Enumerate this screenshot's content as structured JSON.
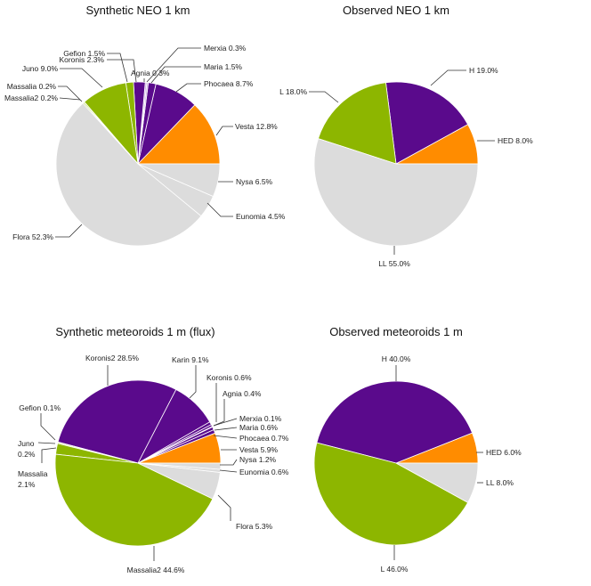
{
  "colors": {
    "purple": "#5a0a8c",
    "orange": "#ff8c00",
    "green": "#8db600",
    "gray": "#dcdcdc",
    "lavender": "#c8a6e2"
  },
  "chart_data": [
    {
      "type": "pie",
      "title": "Synthetic NEO 1 km",
      "start": "east, counter-clockwise",
      "slices": [
        {
          "name": "Vesta",
          "value": 12.8,
          "label": "Vesta 12.8%",
          "color": "#ff8c00"
        },
        {
          "name": "Phocaea",
          "value": 8.7,
          "label": "Phocaea 8.7%",
          "color": "#5a0a8c"
        },
        {
          "name": "Maria",
          "value": 1.5,
          "label": "Maria 1.5%",
          "color": "#5a0a8c"
        },
        {
          "name": "Merxia",
          "value": 0.3,
          "label": "Merxia 0.3%",
          "color": "#c8a6e2"
        },
        {
          "name": "Agnia",
          "value": 0.3,
          "label": "Agnia 0.3%",
          "color": "#c8a6e2"
        },
        {
          "name": "Koronis",
          "value": 2.3,
          "label": "Koronis 2.3%",
          "color": "#5a0a8c"
        },
        {
          "name": "Gefion",
          "value": 1.5,
          "label": "Gefion 1.5%",
          "color": "#8db600"
        },
        {
          "name": "Juno",
          "value": 9.0,
          "label": "Juno 9.0%",
          "color": "#8db600"
        },
        {
          "name": "Massalia",
          "value": 0.2,
          "label": "Massalia 0.2%",
          "color": "#8db600"
        },
        {
          "name": "Massalia2",
          "value": 0.2,
          "label": "Massalia2 0.2%",
          "color": "#8db600"
        },
        {
          "name": "Flora",
          "value": 52.3,
          "label": "Flora 52.3%",
          "color": "#dcdcdc"
        },
        {
          "name": "Eunomia",
          "value": 4.5,
          "label": "Eunomia 4.5%",
          "color": "#dcdcdc"
        },
        {
          "name": "Nysa",
          "value": 6.5,
          "label": "Nysa 6.5%",
          "color": "#dcdcdc"
        }
      ]
    },
    {
      "type": "pie",
      "title": "Observed NEO 1 km",
      "start": "east, counter-clockwise",
      "slices": [
        {
          "name": "HED",
          "value": 8.0,
          "label": "HED 8.0%",
          "color": "#ff8c00"
        },
        {
          "name": "H",
          "value": 19.0,
          "label": "H 19.0%",
          "color": "#5a0a8c"
        },
        {
          "name": "L",
          "value": 18.0,
          "label": "L 18.0%",
          "color": "#8db600"
        },
        {
          "name": "LL",
          "value": 55.0,
          "label": "LL 55.0%",
          "color": "#dcdcdc"
        }
      ]
    },
    {
      "type": "pie",
      "title": "Synthetic meteoroids 1 m (flux)",
      "start": "east, counter-clockwise",
      "slices": [
        {
          "name": "Vesta",
          "value": 5.9,
          "label": "Vesta 5.9%",
          "color": "#ff8c00"
        },
        {
          "name": "Phocaea",
          "value": 0.7,
          "label": "Phocaea 0.7%",
          "color": "#5a0a8c"
        },
        {
          "name": "Maria",
          "value": 0.6,
          "label": "Maria 0.6%",
          "color": "#5a0a8c"
        },
        {
          "name": "Merxia",
          "value": 0.1,
          "label": "Merxia 0.1%",
          "color": "#5a0a8c"
        },
        {
          "name": "Agnia",
          "value": 0.4,
          "label": "Agnia 0.4%",
          "color": "#5a0a8c"
        },
        {
          "name": "Koronis",
          "value": 0.6,
          "label": "Koronis 0.6%",
          "color": "#5a0a8c"
        },
        {
          "name": "Karin",
          "value": 9.1,
          "label": "Karin 9.1%",
          "color": "#5a0a8c"
        },
        {
          "name": "Koronis2",
          "value": 28.5,
          "label": "Koronis2 28.5%",
          "color": "#5a0a8c"
        },
        {
          "name": "Gefion",
          "value": 0.1,
          "label": "Gefion 0.1%",
          "color": "#8db600"
        },
        {
          "name": "Juno",
          "value": 0.2,
          "label": "Juno\n0.2%",
          "color": "#8db600"
        },
        {
          "name": "Massalia",
          "value": 2.1,
          "label": "Massalia\n2.1%",
          "color": "#8db600"
        },
        {
          "name": "Massalia2",
          "value": 44.6,
          "label": "Massalia2 44.6%",
          "color": "#8db600"
        },
        {
          "name": "Flora",
          "value": 5.3,
          "label": "Flora 5.3%",
          "color": "#dcdcdc"
        },
        {
          "name": "Eunomia",
          "value": 0.6,
          "label": "Eunomia 0.6%",
          "color": "#dcdcdc"
        },
        {
          "name": "Nysa",
          "value": 1.2,
          "label": "Nysa 1.2%",
          "color": "#dcdcdc"
        }
      ]
    },
    {
      "type": "pie",
      "title": "Observed meteoroids 1 m",
      "start": "east, counter-clockwise",
      "slices": [
        {
          "name": "HED",
          "value": 6.0,
          "label": "HED 6.0%",
          "color": "#ff8c00"
        },
        {
          "name": "H",
          "value": 40.0,
          "label": "H 40.0%",
          "color": "#5a0a8c"
        },
        {
          "name": "L",
          "value": 46.0,
          "label": "L 46.0%",
          "color": "#8db600"
        },
        {
          "name": "LL",
          "value": 8.0,
          "label": "LL 8.0%",
          "color": "#dcdcdc"
        }
      ]
    }
  ]
}
